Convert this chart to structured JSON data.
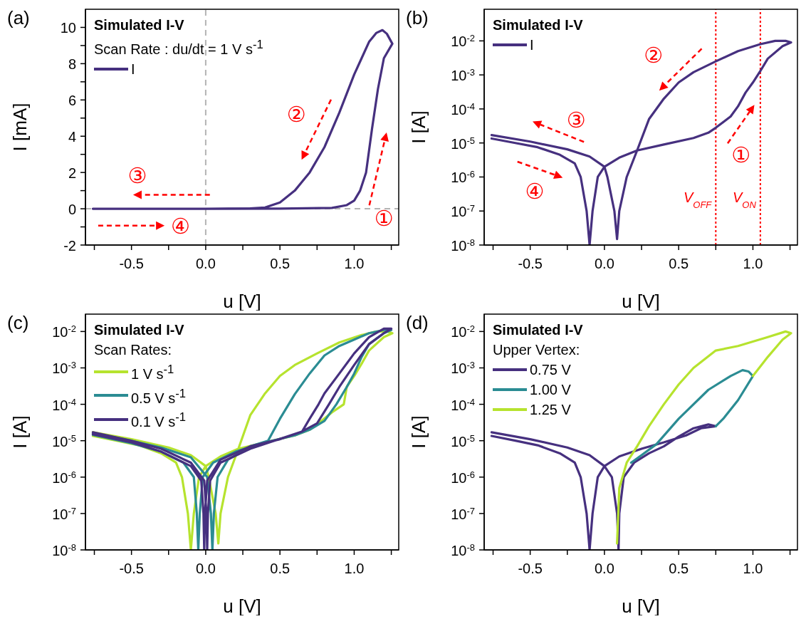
{
  "chart_data": [
    {
      "type": "line",
      "title": "(a)",
      "xlabel": "u [V]",
      "ylabel": "I [mA]",
      "legend_title": "Simulated I-V",
      "legend": "top left",
      "annotations": [
        "Scan Rate : du/dt = 1 V s$^{-1}$",
        "②",
        "①",
        "③",
        "④"
      ],
      "xlim": [
        -0.81,
        1.3
      ],
      "xticks": [
        {
          "value": -0.75,
          "label": null
        },
        {
          "value": -0.5,
          "label": "-0.5"
        },
        {
          "value": -0.25,
          "label": null
        },
        {
          "value": 0,
          "label": "0.0"
        },
        {
          "value": 0.25,
          "label": null
        },
        {
          "value": 0.5,
          "label": "0.5"
        },
        {
          "value": 0.75,
          "label": null
        },
        {
          "value": 1,
          "label": "1.0"
        },
        {
          "value": 1.25,
          "label": null
        }
      ],
      "ylim": [
        -2,
        11
      ],
      "yticks": [
        -2,
        {
          "value": -1,
          "label": null
        },
        0,
        {
          "value": 1,
          "label": null
        },
        2,
        {
          "value": 3,
          "label": null
        },
        4,
        {
          "value": 5,
          "label": null
        },
        6,
        {
          "value": 7,
          "label": null
        },
        8,
        {
          "value": 9,
          "label": null
        },
        10
      ],
      "ref_lines": [
        {
          "axis": "x",
          "value": 0,
          "label": null,
          "color": "#b4b4b4",
          "line_style": "dashed"
        },
        {
          "axis": "y",
          "value": 0,
          "label": null,
          "color": "#b4b4b4",
          "line_style": "dashed"
        }
      ],
      "series": [
        {
          "name": "I",
          "color": "#46307f",
          "x": [
            -0.76,
            -0.5,
            0,
            0.5,
            0.85,
            0.95,
            1.0,
            1.04,
            1.08,
            1.12,
            1.16,
            1.2,
            1.257,
            1.22,
            1.19,
            1.15,
            1.1,
            1.05,
            1.0,
            0.9,
            0.8,
            0.7,
            0.6,
            0.5,
            0.4,
            0.3,
            0
          ],
          "values": [
            0,
            0,
            0,
            0.01,
            0.05,
            0.2,
            0.45,
            1.0,
            2.0,
            4.4,
            6.6,
            8.3,
            9.1,
            9.65,
            9.85,
            9.7,
            9.2,
            8.3,
            7.4,
            5.3,
            3.4,
            2.0,
            1.0,
            0.35,
            0.07,
            0.02,
            0
          ]
        }
      ]
    },
    {
      "type": "line",
      "title": "(b)",
      "xlabel": "u [V]",
      "ylabel": "I [A]",
      "legend_title": "Simulated I-V",
      "legend": "top left",
      "log": "y",
      "annotations": [
        "②",
        "③",
        "①",
        "④"
      ],
      "xlim": [
        -0.81,
        1.3
      ],
      "xticks": [
        {
          "value": -0.75,
          "label": null
        },
        {
          "value": -0.5,
          "label": "-0.5"
        },
        {
          "value": -0.25,
          "label": null
        },
        {
          "value": 0,
          "label": "0.0"
        },
        {
          "value": 0.25,
          "label": null
        },
        {
          "value": 0.5,
          "label": "0.5"
        },
        {
          "value": 0.75,
          "label": null
        },
        {
          "value": 1,
          "label": "1.0"
        },
        {
          "value": 1.25,
          "label": null
        }
      ],
      "ylim": [
        1e-08,
        0.085
      ],
      "yticks": [
        {
          "value": 1e-08,
          "label": "10$^{-8}$"
        },
        {
          "value": 1e-07,
          "label": "10$^{-7}$"
        },
        {
          "value": 1e-06,
          "label": "10$^{-6}$"
        },
        {
          "value": 1e-05,
          "label": "10$^{-5}$"
        },
        {
          "value": 0.0001,
          "label": "10$^{-4}$"
        },
        {
          "value": 0.001,
          "label": "10$^{-3}$"
        },
        {
          "value": 0.01,
          "label": "10$^{-2}$"
        }
      ],
      "ref_lines": [
        {
          "axis": "x",
          "value": 0.75,
          "label": "V$_{OFF}$",
          "color": "#ff0000",
          "line_style": "dotted"
        },
        {
          "axis": "x",
          "value": 1.05,
          "label": "V$_{ON}$",
          "color": "#ff0000",
          "line_style": "dotted"
        }
      ],
      "series": [
        {
          "name": "I",
          "color": "#46307f",
          "x": [
            -0.76,
            -0.6,
            -0.45,
            -0.3,
            -0.2,
            -0.16,
            -0.12,
            -0.1,
            -0.08,
            -0.045,
            0,
            0.1,
            0.22,
            0.4,
            0.6,
            0.7,
            0.75,
            0.85,
            0.9,
            0.95,
            1.0,
            1.05,
            1.1,
            1.2,
            1.257,
            1.22,
            1.15,
            1.05,
            0.9,
            0.75,
            0.6,
            0.5,
            0.4,
            0.3,
            0.22,
            0.15,
            0.1,
            0.085,
            0.067,
            0.02,
            0,
            -0.1,
            -0.25,
            -0.5,
            -0.76
          ],
          "values": [
            1.35e-05,
            1e-05,
            7.5e-06,
            4.5e-06,
            2.5e-06,
            1e-06,
            1e-07,
            1e-08,
            1e-07,
            1e-06,
            2e-06,
            3.7e-06,
            6e-06,
            9e-06,
            1.4e-05,
            2e-05,
            2.8e-05,
            6e-05,
            0.00012,
            0.0003,
            0.0006,
            0.0013,
            0.003,
            0.007,
            0.009,
            0.01,
            0.01,
            0.008,
            0.005,
            0.0025,
            0.0012,
            0.0006,
            0.0002,
            5e-05,
            6e-06,
            1e-06,
            1e-07,
            1.5e-08,
            1e-07,
            1e-06,
            2e-06,
            4e-06,
            6.5e-06,
            1.1e-05,
            1.7e-05
          ]
        }
      ]
    },
    {
      "type": "line",
      "title": "(c)",
      "xlabel": "u [V]",
      "ylabel": "I [A]",
      "legend_title": "Simulated I-V",
      "legend": "top left",
      "log": "y",
      "annotations": [
        "Scan Rates:"
      ],
      "xlim": [
        -0.81,
        1.3
      ],
      "xticks": [
        {
          "value": -0.75,
          "label": null
        },
        {
          "value": -0.5,
          "label": "-0.5"
        },
        {
          "value": -0.25,
          "label": null
        },
        {
          "value": 0,
          "label": "0.0"
        },
        {
          "value": 0.25,
          "label": null
        },
        {
          "value": 0.5,
          "label": "0.5"
        },
        {
          "value": 0.75,
          "label": null
        },
        {
          "value": 1,
          "label": "1.0"
        },
        {
          "value": 1.25,
          "label": null
        }
      ],
      "ylim": [
        1e-08,
        0.03
      ],
      "yticks": [
        {
          "value": 1e-08,
          "label": "10$^{-8}$"
        },
        {
          "value": 1e-07,
          "label": "10$^{-7}$"
        },
        {
          "value": 1e-06,
          "label": "10$^{-6}$"
        },
        {
          "value": 1e-05,
          "label": "10$^{-5}$"
        },
        {
          "value": 0.0001,
          "label": "10$^{-4}$"
        },
        {
          "value": 0.001,
          "label": "10$^{-3}$"
        },
        {
          "value": 0.01,
          "label": "10$^{-2}$"
        }
      ],
      "series": [
        {
          "name": "1 V s$^{-1}$",
          "color": "#b6e32e",
          "x": [
            -0.76,
            -0.6,
            -0.45,
            -0.3,
            -0.2,
            -0.16,
            -0.12,
            -0.1,
            -0.08,
            -0.045,
            0,
            0.1,
            0.22,
            0.4,
            0.6,
            0.7,
            0.75,
            0.85,
            0.93,
            0.95,
            1.0,
            1.05,
            1.1,
            1.2,
            1.257,
            1.22,
            1.15,
            1.05,
            0.9,
            0.75,
            0.6,
            0.5,
            0.4,
            0.3,
            0.22,
            0.15,
            0.1,
            0.085,
            0.067,
            0.02,
            0,
            -0.1,
            -0.25,
            -0.5,
            -0.76
          ],
          "values": [
            1.35e-05,
            1e-05,
            7.5e-06,
            4.5e-06,
            2.5e-06,
            1e-06,
            1e-07,
            1e-08,
            1e-07,
            1e-06,
            2e-06,
            3.7e-06,
            6e-06,
            null,
            1.4e-05,
            2e-05,
            2.8e-05,
            6e-05,
            0.0001,
            0.0003,
            0.0006,
            0.0013,
            0.003,
            0.007,
            0.009,
            0.01,
            0.01,
            0.008,
            0.005,
            0.0025,
            0.0012,
            0.0006,
            0.0002,
            5e-05,
            6e-06,
            1e-06,
            1e-07,
            1.5e-08,
            1e-07,
            1e-06,
            2e-06,
            4e-06,
            6.5e-06,
            1.1e-05,
            1.7e-05
          ]
        },
        {
          "name": "0.5 V s$^{-1}$",
          "color": "#2b8c93",
          "x": [
            -0.76,
            -0.5,
            -0.3,
            -0.15,
            -0.08,
            -0.06,
            -0.05,
            -0.04,
            -0.02,
            0.05,
            0.2,
            0.4,
            0.6,
            0.7,
            0.8,
            0.88,
            0.95,
            1.0,
            1.05,
            1.1,
            1.2,
            1.25,
            1.2,
            1.1,
            1.0,
            0.9,
            0.8,
            0.7,
            0.6,
            0.5,
            0.42,
            0.3,
            0.15,
            0.08,
            0.055,
            0.045,
            0.035,
            0.01,
            -0.1,
            -0.3,
            -0.5,
            -0.76
          ],
          "values": [
            1.45e-05,
            8.5e-06,
            5e-06,
            2.5e-06,
            1e-06,
            1e-07,
            1e-08,
            1e-07,
            1e-06,
            2.5e-06,
            5e-06,
            9e-06,
            1.4e-05,
            2e-05,
            3.5e-05,
            0.0001,
            0.0003,
            0.0007,
            0.002,
            0.0045,
            0.009,
            0.011,
            0.011,
            0.009,
            0.006,
            0.004,
            0.0022,
            0.0007,
            0.00019,
            4e-05,
            1e-05,
            7e-06,
            3e-06,
            1e-06,
            1e-07,
            1e-08,
            1e-07,
            1e-06,
            3.5e-06,
            6.5e-06,
            1e-05,
            1.6e-05
          ]
        },
        {
          "name": "0.1 V s$^{-1}$",
          "color": "#46307f",
          "x": [
            -0.76,
            -0.5,
            -0.3,
            -0.1,
            -0.03,
            -0.015,
            -0.01,
            -0.005,
            0.01,
            0.1,
            0.3,
            0.5,
            0.65,
            0.75,
            0.83,
            0.9,
            1.0,
            1.1,
            1.2,
            1.25,
            1.2,
            1.1,
            1.0,
            0.9,
            0.8,
            0.76,
            0.7,
            0.65,
            0.3,
            0.1,
            0.03,
            0.015,
            0.01,
            0.005,
            -0.01,
            -0.1,
            -0.3,
            -0.5,
            -0.76
          ],
          "values": [
            1.5e-05,
            9e-06,
            5e-06,
            2e-06,
            8e-07,
            1e-07,
            1e-08,
            1e-07,
            8e-07,
            3e-06,
            7e-06,
            1.1e-05,
            1.8e-05,
            3e-05,
            0.0001,
            0.0003,
            0.0012,
            0.0045,
            0.009,
            0.012,
            0.012,
            0.007,
            0.0025,
            0.0007,
            0.0002,
            0.0001,
            4e-05,
            1.8e-05,
            6e-06,
            2.5e-06,
            8e-07,
            1e-07,
            1e-08,
            1e-07,
            8e-07,
            2.5e-06,
            6e-06,
            1e-05,
            1.7e-05
          ]
        }
      ]
    },
    {
      "type": "line",
      "title": "(d)",
      "xlabel": "u [V]",
      "ylabel": "I [A]",
      "legend_title": "Simulated I-V",
      "legend": "top left",
      "log": "y",
      "annotations": [
        "Upper Vertex:"
      ],
      "xlim": [
        -0.81,
        1.3
      ],
      "xticks": [
        {
          "value": -0.75,
          "label": null
        },
        {
          "value": -0.5,
          "label": "-0.5"
        },
        {
          "value": -0.25,
          "label": null
        },
        {
          "value": 0,
          "label": "0.0"
        },
        {
          "value": 0.25,
          "label": null
        },
        {
          "value": 0.5,
          "label": "0.5"
        },
        {
          "value": 0.75,
          "label": null
        },
        {
          "value": 1,
          "label": "1.0"
        },
        {
          "value": 1.25,
          "label": null
        }
      ],
      "ylim": [
        1e-08,
        0.03
      ],
      "yticks": [
        {
          "value": 1e-08,
          "label": "10$^{-8}$"
        },
        {
          "value": 1e-07,
          "label": "10$^{-7}$"
        },
        {
          "value": 1e-06,
          "label": "10$^{-6}$"
        },
        {
          "value": 1e-05,
          "label": "10$^{-5}$"
        },
        {
          "value": 0.0001,
          "label": "10$^{-4}$"
        },
        {
          "value": 0.001,
          "label": "10$^{-3}$"
        },
        {
          "value": 0.01,
          "label": "10$^{-2}$"
        }
      ],
      "series": [
        {
          "name": "0.75 V",
          "color": "#46307f",
          "x": [
            -0.76,
            -0.6,
            -0.45,
            -0.3,
            -0.2,
            -0.16,
            -0.12,
            -0.1,
            -0.08,
            -0.045,
            0,
            0.1,
            0.25,
            0.4,
            0.55,
            0.65,
            0.75,
            0.7,
            0.6,
            0.5,
            0.4,
            0.3,
            0.2,
            0.13,
            0.1,
            0.095,
            0.085,
            0.05,
            0,
            -0.1,
            -0.25,
            -0.5,
            -0.76
          ],
          "values": [
            1.35e-05,
            1e-05,
            7.5e-06,
            4.5e-06,
            2.5e-06,
            1e-06,
            1e-07,
            1e-08,
            1e-07,
            1e-06,
            2e-06,
            3.7e-06,
            6e-06,
            9e-06,
            1.4e-05,
            2.2e-05,
            2.5e-05,
            2.8e-05,
            2.2e-05,
            1.3e-05,
            7e-06,
            4.5e-06,
            2.5e-06,
            1e-06,
            1e-07,
            1e-08,
            1e-07,
            1e-06,
            2e-06,
            4e-06,
            6.5e-06,
            1.1e-05,
            1.7e-05
          ]
        },
        {
          "name": "1.00 V",
          "color": "#2b8c93",
          "x": [
            0.75,
            0.8,
            0.9,
            1.0,
            0.97,
            0.93,
            0.85,
            0.7,
            0.5,
            0.35,
            0.25,
            0.18
          ],
          "values": [
            2.5e-05,
            4e-05,
            0.00013,
            0.0006,
            0.0008,
            0.00087,
            0.0006,
            0.00025,
            4e-05,
            8e-06,
            4e-06,
            2.5e-06
          ]
        },
        {
          "name": "1.25 V",
          "color": "#b6e32e",
          "x": [
            1.0,
            1.1,
            1.2,
            1.257,
            1.22,
            1.1,
            0.9,
            0.75,
            0.6,
            0.5,
            0.4,
            0.3,
            0.22,
            0.15,
            0.1,
            0.085
          ],
          "values": [
            0.0006,
            0.002,
            0.006,
            0.009,
            0.01,
            0.007,
            0.004,
            0.003,
            0.001,
            0.00035,
            0.0001,
            2.5e-05,
            7e-06,
            2.5e-06,
            5e-07,
            1.5e-08
          ]
        }
      ]
    }
  ]
}
